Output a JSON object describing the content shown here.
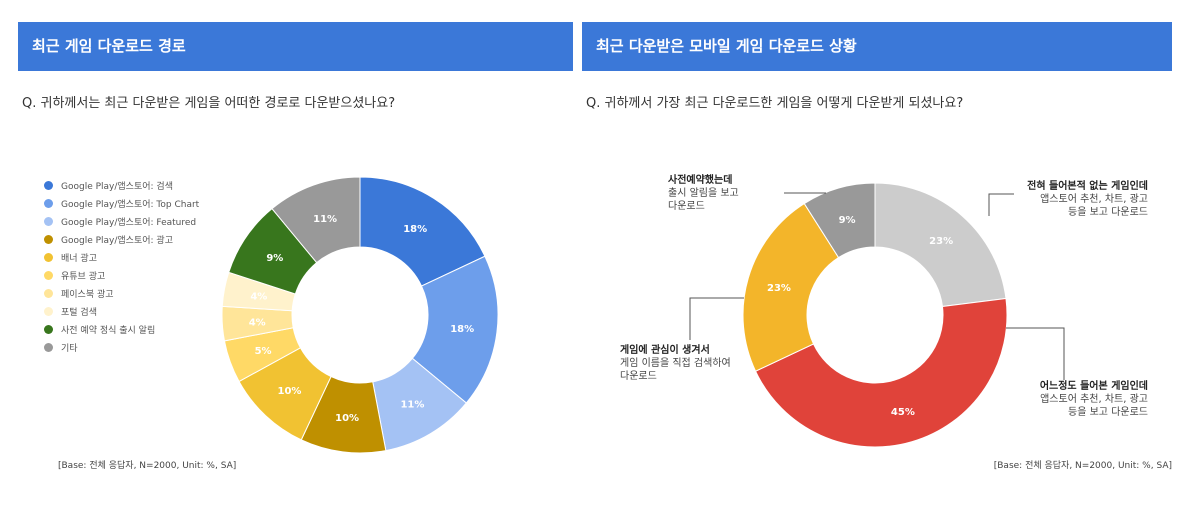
{
  "left": {
    "title": "최근 게임 다운로드 경로",
    "question": "Q. 귀하께서는 최근 다운받은 게임을 어떠한 경로로 다운받으셨나요?",
    "base": "[Base: 전체 응답자, N=2000, Unit: %, SA]"
  },
  "right": {
    "title": "최근 다운받은 모바일 게임 다운로드 상황",
    "question": "Q. 귀하께서 가장 최근 다운로드한 게임을 어떻게 다운받게 되셨나요?",
    "base": "[Base: 전체 응답자, N=2000, Unit: %, SA]",
    "annotations": {
      "a1": {
        "bold": "사전예약했는데",
        "lines": [
          "출시 알림을 보고",
          "다운로드"
        ]
      },
      "a2": {
        "bold": "전혀 들어본적 없는 게임인데",
        "lines": [
          "앱스토어 추천, 차트, 광고",
          "등을 보고 다운로드"
        ]
      },
      "a3": {
        "bold": "게임에 관심이 생겨서",
        "lines": [
          "게임 이름을 직접 검색하여",
          "다운로드"
        ]
      },
      "a4": {
        "bold": "어느정도 들어본 게임인데",
        "lines": [
          "앱스토어 추천, 차트, 광고",
          "등을 보고 다운로드"
        ]
      }
    }
  },
  "chart_data": [
    {
      "type": "pie",
      "donut": true,
      "title": "최근 게임 다운로드 경로",
      "legend_position": "left",
      "categories": [
        "Google Play/앱스토어: 검색",
        "Google Play/앱스토어: Top Chart",
        "Google Play/앱스토어: Featured",
        "Google Play/앱스토어: 광고",
        "배너 광고",
        "유튜브 광고",
        "페이스북 광고",
        "포털 검색",
        "사전 예약 정식 출시 알림",
        "기타"
      ],
      "values": [
        18,
        18,
        11,
        10,
        10,
        5,
        4,
        4,
        9,
        11
      ],
      "colors": [
        "#3b78d8",
        "#6d9eeb",
        "#a4c2f4",
        "#bf9000",
        "#f1c232",
        "#ffd966",
        "#ffe599",
        "#fff2cc",
        "#38761d",
        "#999999"
      ],
      "labels": [
        "18%",
        "18%",
        "11%",
        "10%",
        "10%",
        "5%",
        "4%",
        "4%",
        "9%",
        "11%"
      ],
      "label_colors": [
        "#ffffff",
        "#ffffff",
        "#ffffff",
        "#ffffff",
        "#ffffff",
        "#ffffff",
        "#ffffff",
        "#ffffff",
        "#ffffff",
        "#ffffff"
      ]
    },
    {
      "type": "pie",
      "donut": true,
      "title": "최근 다운받은 모바일 게임 다운로드 상황",
      "categories": [
        "전혀 들어본적 없는 게임인데 앱스토어 추천, 차트, 광고 등을 보고 다운로드",
        "어느정도 들어본 게임인데 앱스토어 추천, 차트, 광고 등을 보고 다운로드",
        "게임에 관심이 생겨서 게임 이름을 직접 검색하여 다운로드",
        "사전예약했는데 출시 알림을 보고 다운로드"
      ],
      "values": [
        23,
        45,
        23,
        9
      ],
      "colors": [
        "#cccccc",
        "#e0433a",
        "#f3b52a",
        "#999999"
      ],
      "labels": [
        "23%",
        "45%",
        "23%",
        "9%"
      ],
      "label_colors": [
        "#ffffff",
        "#ffffff",
        "#ffffff",
        "#ffffff"
      ]
    }
  ]
}
